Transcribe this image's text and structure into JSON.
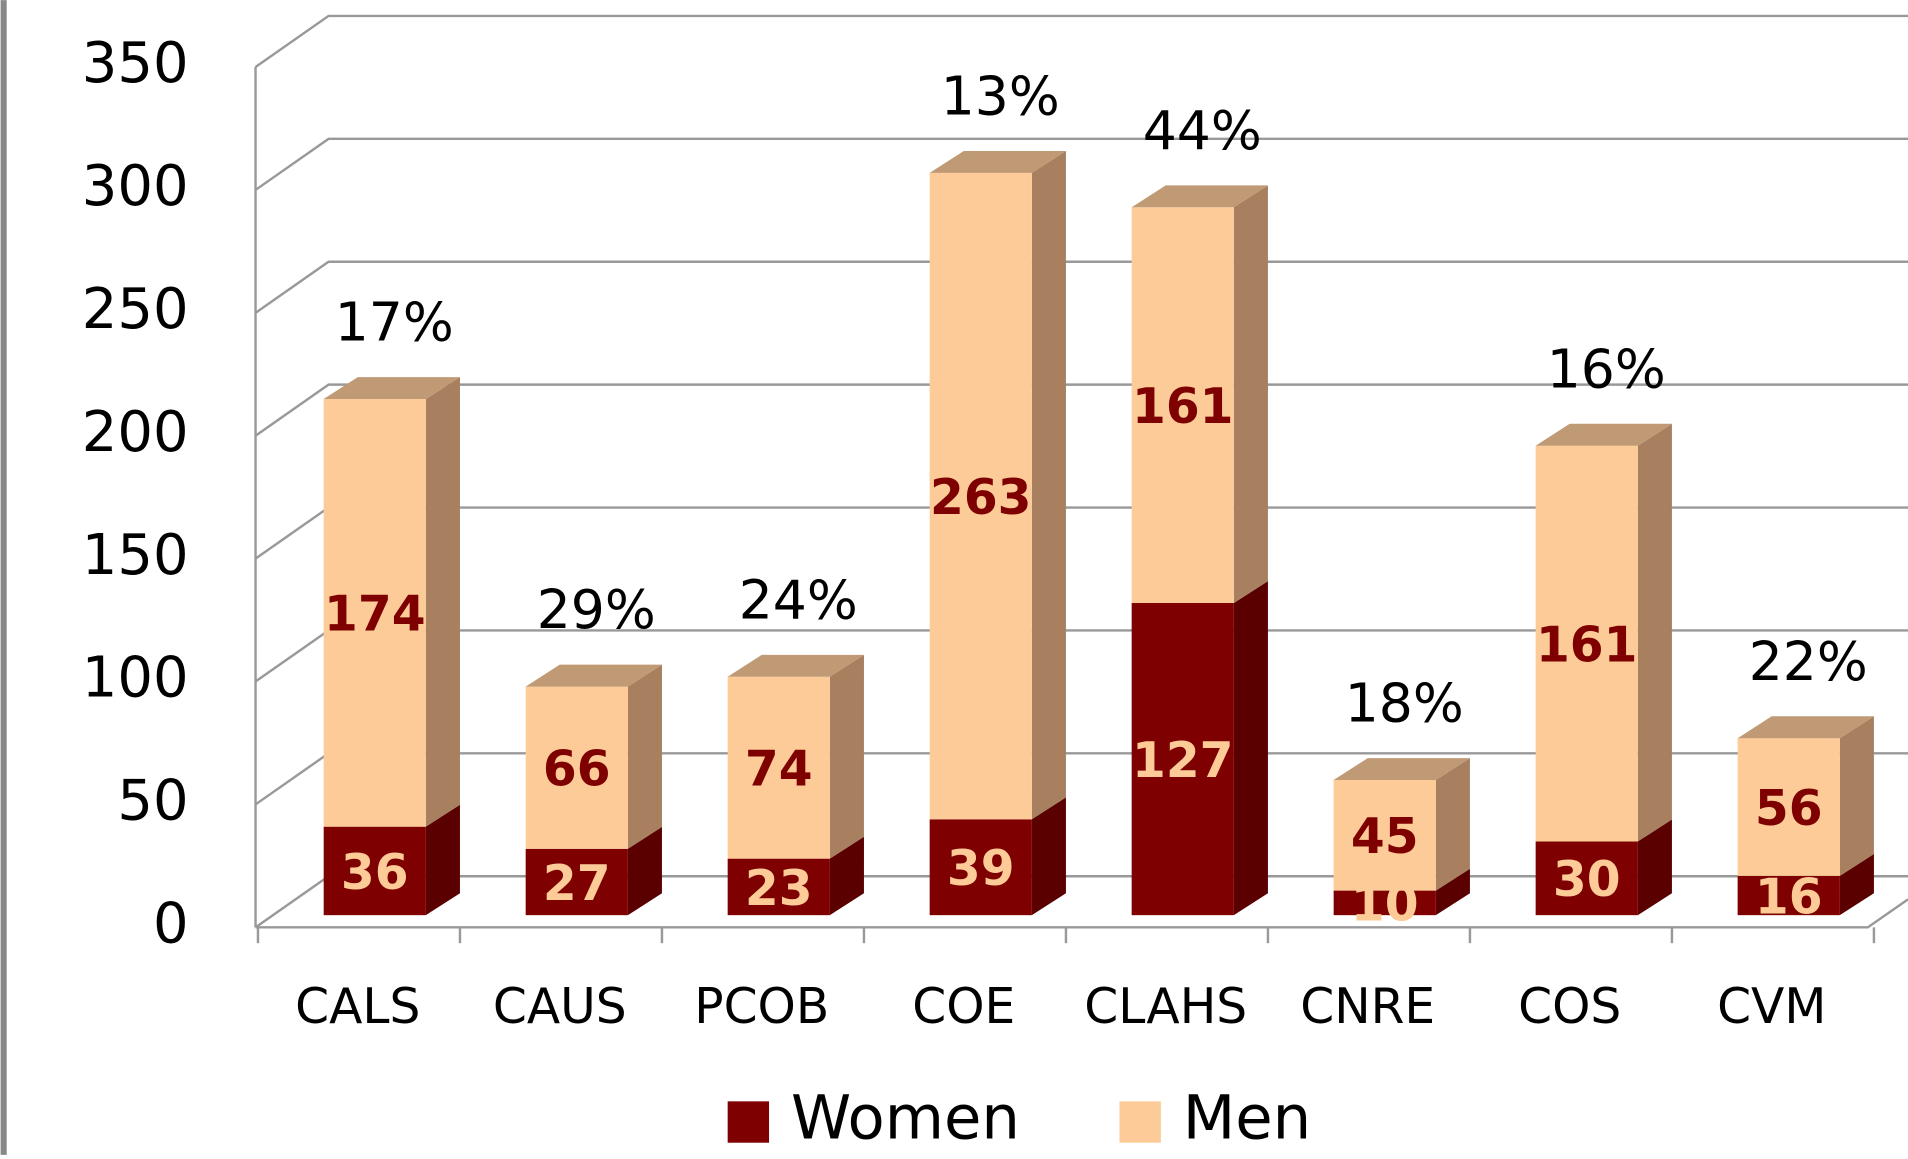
{
  "chart_data": {
    "type": "bar",
    "stacked": true,
    "categories": [
      "CALS",
      "CAUS",
      "PCOB",
      "COE",
      "CLAHS",
      "CNRE",
      "COS",
      "CVM"
    ],
    "series": [
      {
        "name": "Women",
        "color": "#7f0000",
        "values": [
          36,
          27,
          23,
          39,
          127,
          10,
          30,
          16
        ]
      },
      {
        "name": "Men",
        "color": "#fccb98",
        "values": [
          174,
          66,
          74,
          263,
          161,
          45,
          161,
          56
        ]
      }
    ],
    "annotations": [
      "17%",
      "29%",
      "24%",
      "13%",
      "44%",
      "18%",
      "16%",
      "22%"
    ],
    "ylim": [
      0,
      350
    ],
    "yticks": [
      0,
      50,
      100,
      150,
      200,
      250,
      300,
      350
    ],
    "grid": true,
    "legend": "bottom"
  }
}
